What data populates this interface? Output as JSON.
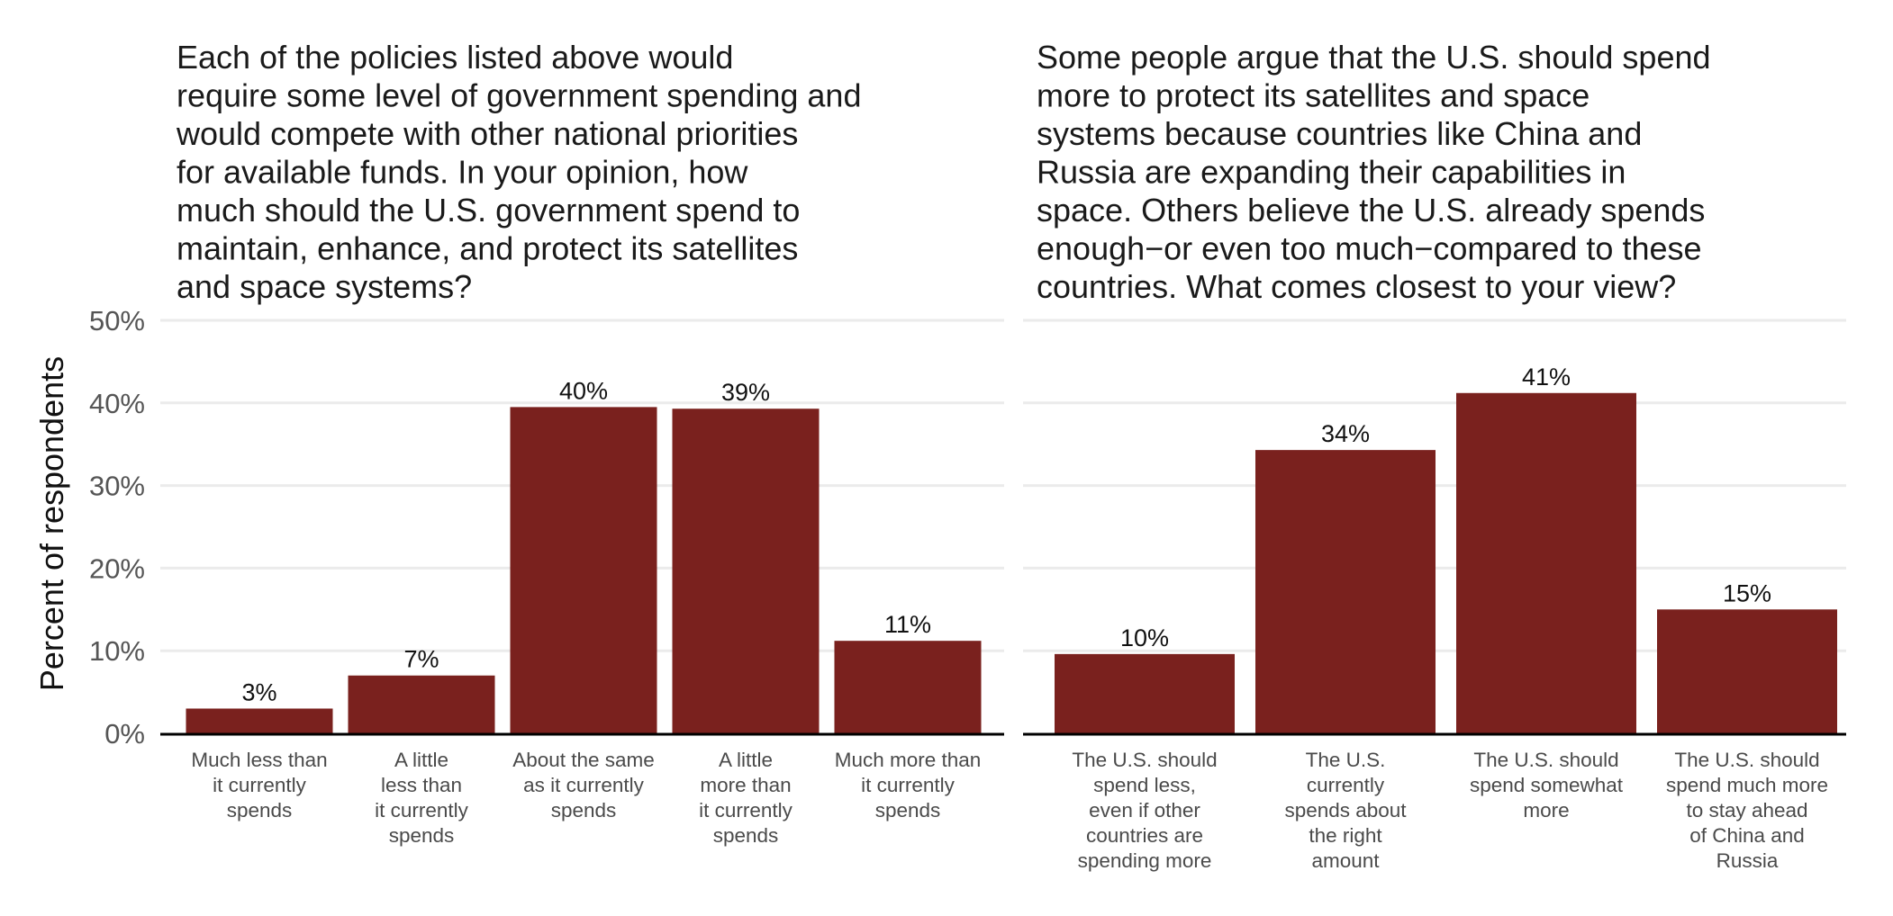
{
  "y_axis_label": "Percent of respondents",
  "colors": {
    "bar": "#7a211e",
    "grid": "#ebebeb",
    "axis": "#000000"
  },
  "chart_data": [
    {
      "type": "bar",
      "title_lines": [
        "Each of the policies listed above would",
        "require some level of government spending and",
        "would compete with other national priorities",
        "for available funds. In your opinion, how",
        "much should the U.S. government spend to",
        "maintain, enhance, and protect its satellites",
        "and space systems?"
      ],
      "category_lines": [
        [
          "Much less than",
          "it currently",
          "spends"
        ],
        [
          "A little",
          "less than",
          "it currently",
          "spends"
        ],
        [
          "About the same",
          "as it currently",
          "spends"
        ],
        [
          "A little",
          "more than",
          "it currently",
          "spends"
        ],
        [
          "Much more than",
          "it currently",
          "spends"
        ]
      ],
      "values": [
        3,
        7,
        39.5,
        39.3,
        11.2
      ],
      "labels": [
        "3%",
        "7%",
        "40%",
        "39%",
        "11%"
      ],
      "ylim": [
        0,
        50
      ],
      "yticks": [
        "0%",
        "10%",
        "20%",
        "30%",
        "40%",
        "50%"
      ],
      "grid": true
    },
    {
      "type": "bar",
      "title_lines": [
        "Some people argue that the U.S. should spend",
        "more to protect its satellites and space",
        "systems because countries like China and",
        "Russia are expanding their capabilities in",
        "space. Others believe the U.S. already spends",
        "enough−or even too much−compared to these",
        "countries. What comes closest to your view?"
      ],
      "category_lines": [
        [
          "The U.S. should",
          "spend less,",
          "even if other",
          "countries are",
          "spending more"
        ],
        [
          "The U.S.",
          "currently",
          "spends about",
          "the right",
          "amount"
        ],
        [
          "The U.S. should",
          "spend somewhat",
          "more"
        ],
        [
          "The U.S. should",
          "spend much more",
          "to stay ahead",
          "of China and",
          "Russia"
        ]
      ],
      "values": [
        9.6,
        34.3,
        41.2,
        15
      ],
      "labels": [
        "10%",
        "34%",
        "41%",
        "15%"
      ],
      "ylim": [
        0,
        50
      ],
      "grid": true
    }
  ]
}
